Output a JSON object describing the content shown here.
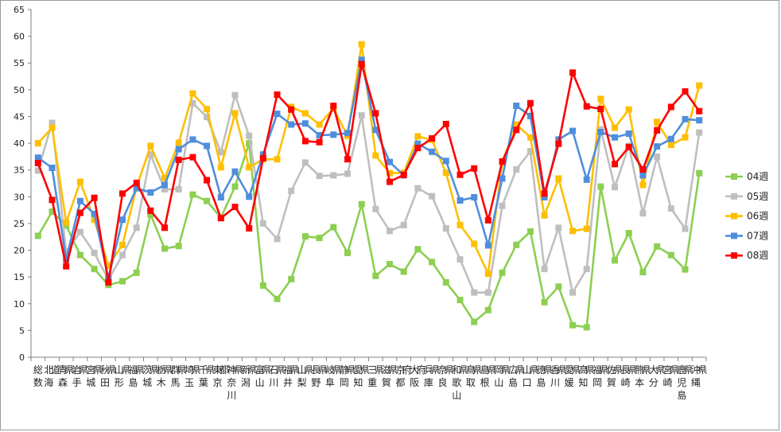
{
  "chart_data": {
    "type": "line",
    "title": "",
    "xlabel": "",
    "ylabel": "",
    "ylim": [
      0,
      65
    ],
    "yticks": [
      0,
      5,
      10,
      15,
      20,
      25,
      30,
      35,
      40,
      45,
      50,
      55,
      60,
      65
    ],
    "grid": "off",
    "legend_position": "right",
    "categories": [
      "総数",
      "北海道",
      "青森県",
      "岩手県",
      "宮城県",
      "秋田県",
      "山形県",
      "福島県",
      "茨城県",
      "栃木県",
      "群馬県",
      "埼玉県",
      "千葉県",
      "東京都",
      "神奈川県",
      "新潟県",
      "富山県",
      "石川県",
      "福井県",
      "山梨県",
      "長野県",
      "岐阜県",
      "静岡県",
      "愛知県",
      "三重県",
      "滋賀県",
      "京都府",
      "大阪府",
      "兵庫県",
      "奈良県",
      "和歌山県",
      "鳥取県",
      "島根県",
      "岡山県",
      "広島県",
      "山口県",
      "徳島県",
      "香川県",
      "愛媛県",
      "高知県",
      "福岡県",
      "佐賀県",
      "長崎県",
      "熊本県",
      "大分県",
      "宮崎県",
      "鹿児島県",
      "沖縄県"
    ],
    "series": [
      {
        "name": "04週",
        "color": "#8dcf52",
        "marker": "square",
        "values": [
          22.7,
          27.2,
          24.6,
          19.1,
          16.5,
          13.5,
          14.2,
          15.8,
          26.7,
          20.3,
          20.8,
          30.4,
          29.2,
          26.1,
          31.9,
          40.0,
          13.4,
          10.9,
          14.6,
          22.6,
          22.3,
          24.3,
          19.5,
          28.6,
          15.2,
          17.4,
          16.0,
          20.2,
          17.8,
          14.0,
          10.7,
          6.6,
          8.8,
          15.8,
          21.0,
          23.5,
          10.3,
          13.2,
          6.0,
          5.6,
          31.9,
          18.1,
          23.2,
          15.9,
          20.7,
          19.1,
          16.4,
          34.4
        ]
      },
      {
        "name": "05週",
        "color": "#bfbfbf",
        "marker": "square",
        "values": [
          34.9,
          43.8,
          19.7,
          23.4,
          19.5,
          14.5,
          19.1,
          24.2,
          37.9,
          31.4,
          31.4,
          47.5,
          44.9,
          38.3,
          49.0,
          41.4,
          25.0,
          22.1,
          31.1,
          36.4,
          33.9,
          34.0,
          34.3,
          45.2,
          27.7,
          23.6,
          24.7,
          31.6,
          30.1,
          24.1,
          18.3,
          12.1,
          12.1,
          28.3,
          35.1,
          38.5,
          16.5,
          24.2,
          12.1,
          16.5,
          42.6,
          31.8,
          39.5,
          26.9,
          37.5,
          27.8,
          24.0,
          42.0
        ]
      },
      {
        "name": "06週",
        "color": "#ffbf00",
        "marker": "square",
        "values": [
          40.0,
          42.9,
          25.2,
          32.8,
          25.7,
          17.1,
          21.0,
          31.8,
          39.5,
          33.5,
          40.1,
          49.3,
          46.4,
          35.5,
          45.6,
          35.5,
          37.0,
          37.0,
          46.8,
          45.6,
          43.5,
          46.5,
          41.4,
          58.5,
          37.7,
          34.4,
          34.5,
          41.3,
          40.6,
          34.5,
          24.7,
          21.2,
          15.6,
          36.4,
          43.5,
          41.1,
          26.5,
          33.4,
          23.6,
          24.0,
          48.3,
          42.9,
          46.3,
          32.2,
          44.0,
          39.7,
          41.1,
          50.8
        ]
      },
      {
        "name": "07週",
        "color": "#4f8edc",
        "marker": "square",
        "values": [
          37.3,
          35.4,
          18.3,
          29.2,
          26.8,
          14.8,
          25.7,
          31.6,
          30.8,
          32.2,
          38.9,
          40.7,
          39.5,
          29.9,
          34.7,
          30.0,
          37.9,
          45.5,
          43.5,
          43.7,
          41.5,
          41.6,
          41.9,
          55.6,
          42.5,
          36.5,
          34.0,
          39.9,
          38.4,
          36.7,
          29.3,
          29.9,
          20.9,
          33.4,
          47.0,
          45.1,
          29.9,
          40.7,
          42.3,
          33.2,
          42.1,
          41.1,
          41.8,
          34.0,
          39.4,
          40.8,
          44.5,
          44.3
        ]
      },
      {
        "name": "08週",
        "color": "#ff0000",
        "marker": "square",
        "values": [
          36.3,
          29.4,
          17.0,
          27.0,
          29.8,
          14.0,
          30.6,
          32.6,
          27.4,
          24.2,
          36.9,
          37.4,
          33.1,
          26.0,
          28.1,
          24.1,
          37.2,
          49.1,
          46.3,
          40.4,
          40.2,
          47.0,
          37.0,
          54.8,
          45.6,
          32.8,
          34.1,
          39.1,
          40.9,
          43.6,
          34.1,
          35.3,
          25.6,
          36.6,
          42.5,
          47.5,
          30.6,
          39.9,
          53.2,
          46.9,
          46.4,
          36.1,
          39.3,
          35.1,
          42.4,
          46.8,
          49.7,
          46.0
        ]
      }
    ]
  }
}
